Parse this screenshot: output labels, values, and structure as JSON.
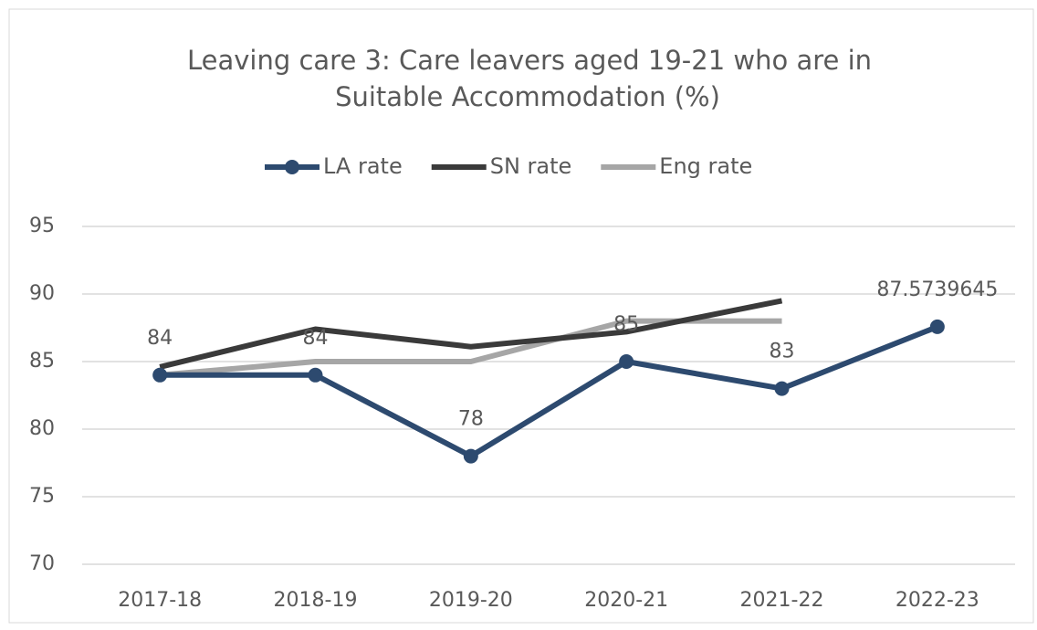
{
  "chart_data": {
    "type": "line",
    "title": [
      "Leaving care 3: Care leavers aged 19-21 who are in",
      "Suitable Accommodation (%)"
    ],
    "categories": [
      "2017-18",
      "2018-19",
      "2019-20",
      "2020-21",
      "2021-22",
      "2022-23"
    ],
    "series": [
      {
        "name": "LA rate",
        "color": "#2d4a6f",
        "marker": true,
        "data_labels": true,
        "values": [
          84,
          84,
          78,
          85,
          83,
          87.5739645
        ]
      },
      {
        "name": "SN rate",
        "color": "#3a3a3a",
        "values": [
          84.6,
          87.4,
          86.1,
          87.2,
          89.5,
          null
        ]
      },
      {
        "name": "Eng rate",
        "color": "#a6a6a6",
        "values": [
          84,
          85,
          85,
          88,
          88,
          null
        ]
      }
    ],
    "ylim": [
      70,
      95
    ],
    "yticks": [
      70,
      75,
      80,
      85,
      90,
      95
    ],
    "grid": true,
    "legend": "top"
  }
}
